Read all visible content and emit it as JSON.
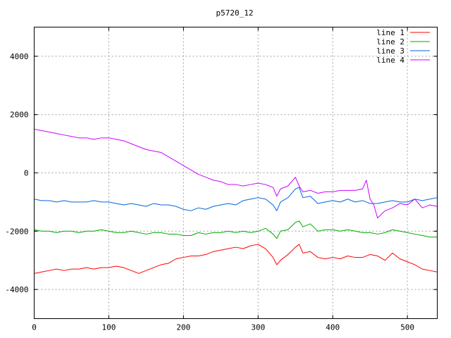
{
  "chart_data": {
    "type": "line",
    "title": "p5720_12",
    "xlabel": "",
    "ylabel": "",
    "xlim": [
      0,
      540
    ],
    "ylim": [
      -5000,
      5000
    ],
    "xticks": [
      0,
      100,
      200,
      300,
      400,
      500
    ],
    "yticks": [
      -4000,
      -2000,
      0,
      2000,
      4000
    ],
    "grid": true,
    "legend_position": "top-right",
    "series": [
      {
        "name": "line 1",
        "color": "#ff0000",
        "x": [
          0,
          10,
          20,
          30,
          40,
          50,
          60,
          70,
          80,
          90,
          100,
          110,
          120,
          130,
          140,
          150,
          160,
          170,
          180,
          190,
          200,
          210,
          220,
          230,
          240,
          250,
          260,
          270,
          280,
          290,
          300,
          310,
          320,
          325,
          330,
          340,
          350,
          355,
          360,
          370,
          380,
          390,
          400,
          410,
          420,
          430,
          440,
          450,
          460,
          470,
          480,
          490,
          500,
          510,
          520,
          530,
          540
        ],
        "values": [
          -3450,
          -3400,
          -3350,
          -3300,
          -3350,
          -3300,
          -3300,
          -3250,
          -3300,
          -3250,
          -3250,
          -3200,
          -3250,
          -3350,
          -3450,
          -3350,
          -3250,
          -3150,
          -3100,
          -2950,
          -2900,
          -2850,
          -2850,
          -2800,
          -2700,
          -2650,
          -2600,
          -2550,
          -2600,
          -2500,
          -2450,
          -2600,
          -2900,
          -3150,
          -3000,
          -2800,
          -2550,
          -2450,
          -2750,
          -2700,
          -2900,
          -2950,
          -2900,
          -2950,
          -2850,
          -2900,
          -2900,
          -2800,
          -2850,
          -3000,
          -2750,
          -2950,
          -3050,
          -3150,
          -3300,
          -3350,
          -3400
        ]
      },
      {
        "name": "line 2",
        "color": "#00aa00",
        "x": [
          0,
          10,
          20,
          30,
          40,
          50,
          60,
          70,
          80,
          90,
          100,
          110,
          120,
          130,
          140,
          150,
          160,
          170,
          180,
          190,
          200,
          210,
          220,
          230,
          240,
          250,
          260,
          270,
          280,
          290,
          300,
          310,
          320,
          325,
          330,
          340,
          350,
          355,
          360,
          370,
          380,
          390,
          400,
          410,
          420,
          430,
          440,
          450,
          460,
          470,
          480,
          490,
          500,
          510,
          520,
          530,
          540
        ],
        "values": [
          -1950,
          -2000,
          -2000,
          -2050,
          -2000,
          -2000,
          -2050,
          -2000,
          -2000,
          -1950,
          -2000,
          -2050,
          -2050,
          -2000,
          -2050,
          -2100,
          -2050,
          -2050,
          -2100,
          -2100,
          -2150,
          -2150,
          -2050,
          -2100,
          -2050,
          -2050,
          -2000,
          -2050,
          -2000,
          -2050,
          -2000,
          -1900,
          -2100,
          -2250,
          -2000,
          -1950,
          -1700,
          -1650,
          -1850,
          -1750,
          -2000,
          -1950,
          -1950,
          -2000,
          -1950,
          -2000,
          -2050,
          -2050,
          -2100,
          -2050,
          -1950,
          -2000,
          -2050,
          -2100,
          -2150,
          -2200,
          -2200
        ]
      },
      {
        "name": "line 3",
        "color": "#0066dd",
        "x": [
          0,
          10,
          20,
          30,
          40,
          50,
          60,
          70,
          80,
          90,
          100,
          110,
          120,
          130,
          140,
          150,
          160,
          170,
          180,
          190,
          200,
          210,
          220,
          230,
          240,
          250,
          260,
          270,
          280,
          290,
          300,
          310,
          320,
          325,
          330,
          340,
          350,
          355,
          360,
          370,
          380,
          390,
          400,
          410,
          420,
          430,
          440,
          450,
          460,
          470,
          480,
          490,
          500,
          510,
          520,
          530,
          540
        ],
        "values": [
          -900,
          -950,
          -950,
          -1000,
          -950,
          -1000,
          -1000,
          -1000,
          -950,
          -1000,
          -1000,
          -1050,
          -1100,
          -1050,
          -1100,
          -1150,
          -1050,
          -1100,
          -1100,
          -1150,
          -1250,
          -1300,
          -1200,
          -1250,
          -1150,
          -1100,
          -1050,
          -1100,
          -950,
          -900,
          -850,
          -900,
          -1100,
          -1300,
          -1000,
          -850,
          -550,
          -500,
          -850,
          -800,
          -1050,
          -1000,
          -950,
          -1000,
          -900,
          -1000,
          -950,
          -1050,
          -1050,
          -1000,
          -950,
          -1000,
          -1000,
          -900,
          -950,
          -900,
          -850
        ]
      },
      {
        "name": "line 4",
        "color": "#cc00ff",
        "x": [
          0,
          10,
          20,
          30,
          40,
          50,
          60,
          70,
          80,
          90,
          100,
          110,
          120,
          130,
          140,
          150,
          160,
          170,
          180,
          190,
          200,
          210,
          220,
          230,
          240,
          250,
          260,
          270,
          280,
          290,
          300,
          310,
          320,
          325,
          330,
          340,
          350,
          355,
          360,
          370,
          380,
          390,
          400,
          410,
          420,
          430,
          440,
          445,
          450,
          455,
          460,
          470,
          480,
          490,
          500,
          510,
          520,
          530,
          540
        ],
        "values": [
          1500,
          1450,
          1400,
          1350,
          1300,
          1250,
          1200,
          1200,
          1150,
          1200,
          1200,
          1150,
          1100,
          1000,
          900,
          800,
          750,
          700,
          550,
          400,
          250,
          100,
          -50,
          -150,
          -250,
          -300,
          -400,
          -400,
          -450,
          -400,
          -350,
          -400,
          -500,
          -800,
          -550,
          -450,
          -150,
          -450,
          -650,
          -600,
          -700,
          -650,
          -650,
          -600,
          -600,
          -600,
          -550,
          -250,
          -900,
          -1100,
          -1550,
          -1300,
          -1200,
          -1050,
          -1100,
          -900,
          -1200,
          -1100,
          -1150
        ]
      }
    ]
  }
}
